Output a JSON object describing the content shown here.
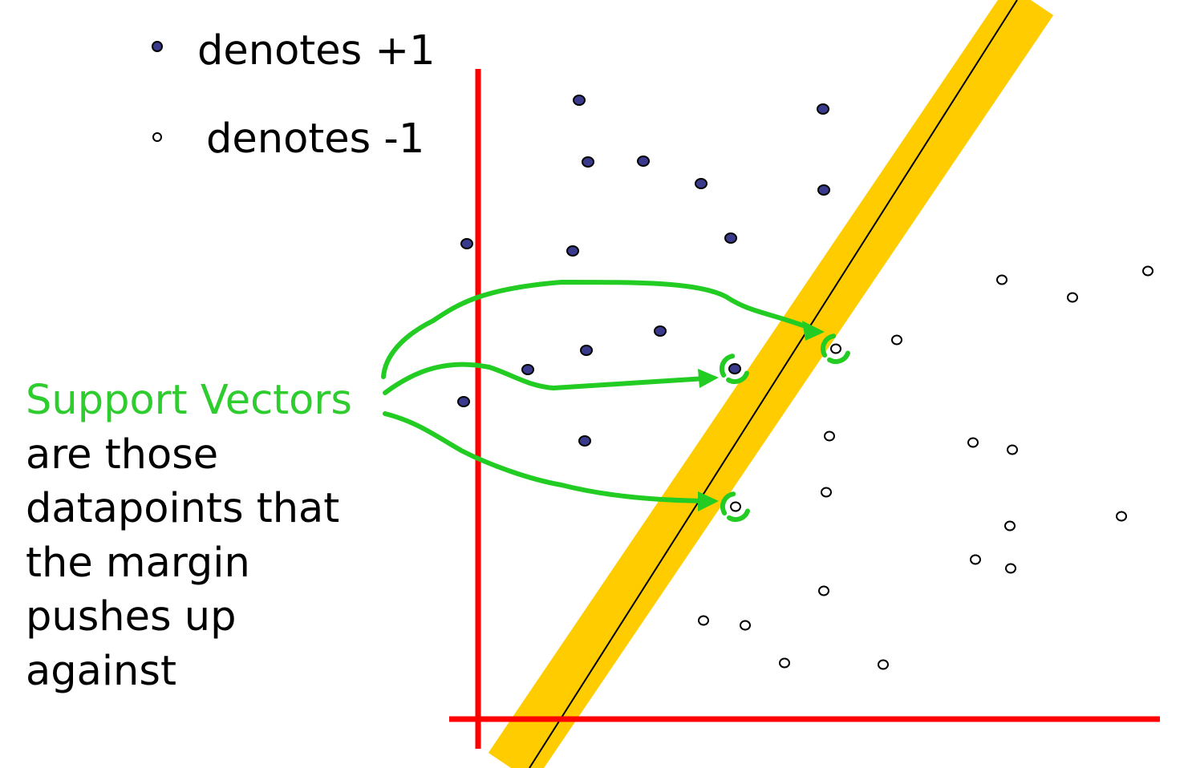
{
  "legend": {
    "positive_label": "denotes +1",
    "negative_label": "denotes -1"
  },
  "caption": {
    "highlight": "Support Vectors",
    "lines": [
      "are those",
      "datapoints that",
      "the margin",
      "pushes up",
      "against"
    ]
  },
  "colors": {
    "axes": "#ff0000",
    "margin_band": "#ffcc00",
    "boundary": "#000000",
    "support_arrows": "#22cc22",
    "positive_fill": "#3a3a8c",
    "negative_fill": "#ffffff"
  },
  "points": {
    "positive": [
      [
        722,
        125
      ],
      [
        1026,
        136
      ],
      [
        733,
        202
      ],
      [
        802,
        201
      ],
      [
        874,
        229
      ],
      [
        1027,
        237
      ],
      [
        582,
        304
      ],
      [
        714,
        313
      ],
      [
        911,
        297
      ],
      [
        823,
        413
      ],
      [
        731,
        437
      ],
      [
        658,
        461
      ],
      [
        916,
        460
      ],
      [
        578,
        501
      ],
      [
        729,
        550
      ]
    ],
    "negative": [
      [
        1249,
        349
      ],
      [
        1337,
        371
      ],
      [
        1431,
        338
      ],
      [
        1118,
        424
      ],
      [
        1042,
        435
      ],
      [
        1034,
        544
      ],
      [
        1213,
        552
      ],
      [
        1262,
        561
      ],
      [
        1030,
        614
      ],
      [
        917,
        632
      ],
      [
        1259,
        656
      ],
      [
        1398,
        644
      ],
      [
        1216,
        698
      ],
      [
        1260,
        709
      ],
      [
        1027,
        737
      ],
      [
        877,
        774
      ],
      [
        929,
        780
      ],
      [
        978,
        827
      ],
      [
        1101,
        829
      ]
    ]
  },
  "support_vectors": [
    [
      916,
      460
    ],
    [
      1042,
      435
    ],
    [
      917,
      632
    ]
  ]
}
